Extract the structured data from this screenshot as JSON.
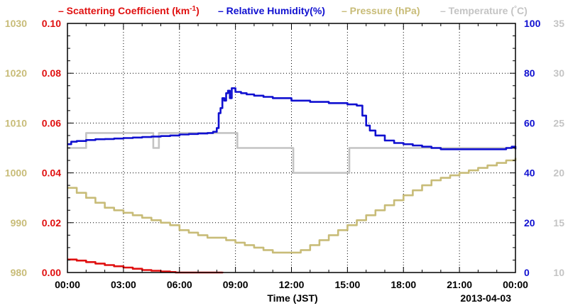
{
  "chart_data": {
    "type": "line",
    "legend": [
      {
        "prefix": "– ",
        "label": "Scattering Coefficient (km",
        "sup": "-1",
        "suffix": ")",
        "color": "#e01010"
      },
      {
        "prefix": "– ",
        "label": "Relative Humidity(%)",
        "sup": "",
        "suffix": "",
        "color": "#1010d0"
      },
      {
        "prefix": "– ",
        "label": "Pressure (hPa)",
        "sup": "",
        "suffix": "",
        "color": "#c8bc78"
      },
      {
        "prefix": "– ",
        "label": "Temperature (",
        "sup": "°",
        "suffix": "C)",
        "color": "#c4c4c4"
      }
    ],
    "xlabel": "Time (JST)",
    "date_label": "2013-04-03",
    "x_ticks": [
      "00:00",
      "03:00",
      "06:00",
      "09:00",
      "12:00",
      "15:00",
      "18:00",
      "21:00",
      "00:00"
    ],
    "xlim_hours": [
      0,
      24
    ],
    "axes": {
      "pressure": {
        "ticks": [
          "980",
          "990",
          "1000",
          "1010",
          "1020",
          "1030"
        ],
        "range": [
          980,
          1030
        ],
        "color": "#c8bc78"
      },
      "scattering": {
        "ticks": [
          "0.00",
          "0.02",
          "0.04",
          "0.06",
          "0.08",
          "0.10"
        ],
        "range": [
          0,
          0.1
        ],
        "color": "#e01010"
      },
      "humidity": {
        "ticks": [
          "0",
          "20",
          "40",
          "60",
          "80",
          "100"
        ],
        "range": [
          0,
          100
        ],
        "color": "#1010d0"
      },
      "temperature": {
        "ticks": [
          "10",
          "15",
          "20",
          "25",
          "30",
          "35"
        ],
        "range": [
          10,
          35
        ],
        "color": "#c4c4c4"
      }
    },
    "grid": true,
    "series": [
      {
        "name": "Scattering Coefficient (km-1)",
        "axis": "scattering",
        "color": "#e01010",
        "x": [
          0,
          0.5,
          1,
          1.5,
          2,
          2.5,
          3,
          3.5,
          4,
          4.5,
          5,
          5.5,
          5.8,
          8.3
        ],
        "y": [
          0.0052,
          0.0048,
          0.0042,
          0.0036,
          0.003,
          0.0025,
          0.002,
          0.0015,
          0.001,
          0.0007,
          0.0004,
          0.0002,
          0.0,
          0.0003
        ]
      },
      {
        "name": "Relative Humidity(%)",
        "axis": "humidity",
        "color": "#1010d0",
        "x": [
          0,
          0.2,
          0.5,
          1,
          1.5,
          2,
          2.5,
          3,
          3.5,
          4,
          4.5,
          5,
          5.5,
          6,
          6.5,
          7,
          7.5,
          7.8,
          8.0,
          8.1,
          8.2,
          8.3,
          8.4,
          8.5,
          8.6,
          8.7,
          8.8,
          9.0,
          9.3,
          9.6,
          10,
          10.5,
          11,
          12,
          13,
          14,
          15,
          15.5,
          15.8,
          16,
          16.2,
          16.5,
          17,
          17.5,
          18,
          18.5,
          19,
          19.5,
          20,
          21,
          21.5,
          22,
          22.5,
          23,
          23.5,
          23.8,
          24
        ],
        "y": [
          51.5,
          52.5,
          52.8,
          53.2,
          53.5,
          53.6,
          53.8,
          54,
          54.2,
          54.4,
          54.6,
          54.8,
          55,
          55.4,
          55.6,
          55.8,
          56,
          56.5,
          58,
          64,
          66,
          70,
          69,
          72,
          73,
          70,
          74,
          72.5,
          72,
          71.5,
          71,
          70.5,
          70,
          69,
          68.5,
          68,
          67.5,
          67,
          63,
          59,
          57,
          55,
          53,
          52,
          51.5,
          51,
          50.5,
          50,
          49.5,
          49.5,
          49.5,
          49.5,
          49.5,
          49.5,
          50,
          50.5,
          49.5
        ]
      },
      {
        "name": "Pressure (hPa)",
        "axis": "pressure",
        "color": "#c8bc78",
        "x": [
          0,
          0.5,
          1,
          1.5,
          2,
          2.5,
          3,
          3.5,
          4,
          4.5,
          5,
          5.5,
          6,
          6.5,
          7,
          7.5,
          8,
          8.5,
          9,
          9.5,
          10,
          10.5,
          11,
          11.5,
          12,
          12.5,
          13,
          13.5,
          14,
          14.5,
          15,
          15.5,
          16,
          16.5,
          17,
          17.5,
          18,
          18.5,
          19,
          19.5,
          20,
          20.5,
          21,
          21.5,
          22,
          22.5,
          23,
          23.5,
          24
        ],
        "y": [
          997,
          996,
          995,
          994,
          993,
          992.5,
          992,
          991.5,
          991,
          990.5,
          990,
          989.5,
          988.5,
          988,
          987.5,
          987,
          987,
          986.5,
          986,
          985.5,
          985,
          984.5,
          984,
          984,
          984,
          984.5,
          985.5,
          986.5,
          987.5,
          988.5,
          989.5,
          990.5,
          991.5,
          992.5,
          993.5,
          994.5,
          995.5,
          996.5,
          997.5,
          998.5,
          999,
          999.5,
          1000,
          1000.5,
          1001,
          1001.5,
          1002,
          1002.5,
          1003
        ]
      },
      {
        "name": "Temperature (°C)",
        "axis": "temperature",
        "color": "#c4c4c4",
        "x": [
          0,
          0.8,
          1.0,
          1.8,
          2.0,
          4.5,
          4.6,
          4.8,
          4.9,
          5.5,
          5.6,
          9.0,
          9.1,
          12.0,
          12.1,
          15.0,
          15.1,
          17.0,
          17.1,
          24
        ],
        "y": [
          22.5,
          22.5,
          24,
          24,
          24,
          24,
          22.5,
          22.5,
          24,
          24,
          24,
          24,
          22.5,
          22.5,
          20,
          20,
          22.5,
          22.5,
          22.5,
          22.5
        ]
      }
    ]
  }
}
